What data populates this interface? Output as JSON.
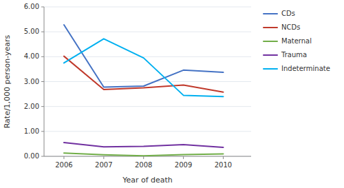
{
  "chart_data": {
    "type": "line",
    "xlabel": "Year of death",
    "ylabel": "Rate/1,000 person-years",
    "x": [
      2006,
      2007,
      2008,
      2009,
      2010
    ],
    "series": [
      {
        "name": "CDs",
        "color": "#4472c4",
        "values": [
          5.28,
          2.78,
          2.82,
          3.46,
          3.37
        ]
      },
      {
        "name": "NCDs",
        "color": "#c0392b",
        "values": [
          4.02,
          2.68,
          2.75,
          2.86,
          2.58
        ]
      },
      {
        "name": "Maternal",
        "color": "#70ad47",
        "values": [
          0.13,
          0.06,
          0.02,
          0.07,
          0.1
        ]
      },
      {
        "name": "Trauma",
        "color": "#7030a0",
        "values": [
          0.55,
          0.38,
          0.4,
          0.47,
          0.36
        ]
      },
      {
        "name": "Indeterminate",
        "color": "#00b0f0",
        "values": [
          3.75,
          4.72,
          3.95,
          2.45,
          2.4
        ]
      }
    ],
    "xlim": [
      2005.5,
      2010.7
    ],
    "xticks": [
      2006,
      2007,
      2008,
      2009,
      2010
    ],
    "ylim": [
      0.0,
      6.0
    ],
    "yticks": [
      {
        "value": 0.0,
        "label": "0.00"
      },
      {
        "value": 1.0,
        "label": "1.00"
      },
      {
        "value": 2.0,
        "label": "2.00"
      },
      {
        "value": 3.0,
        "label": "3.00"
      },
      {
        "value": 4.0,
        "label": "4.00"
      },
      {
        "value": 5.0,
        "label": "5.00"
      },
      {
        "value": 6.0,
        "label": "6.00"
      }
    ],
    "grid": true,
    "legend": "right"
  }
}
